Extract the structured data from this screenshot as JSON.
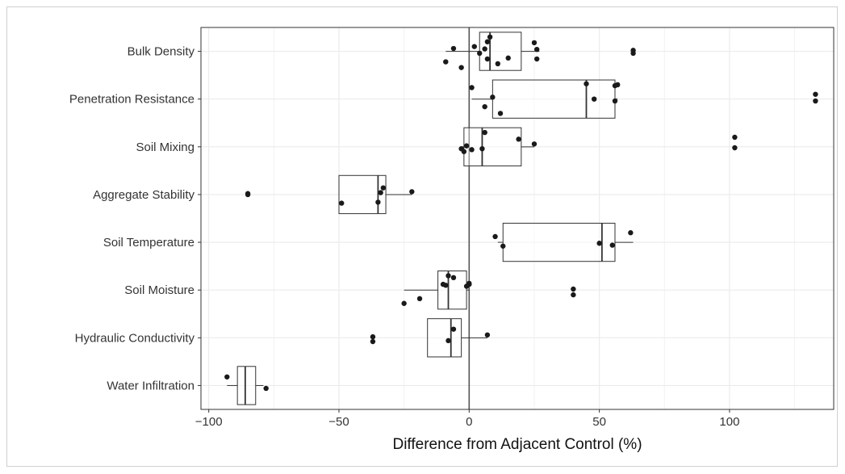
{
  "chart_data": {
    "type": "boxplot",
    "orientation": "horizontal",
    "title": "",
    "xlabel": "Difference from Adjacent Control (%)",
    "ylabel": "",
    "xlim": [
      -103,
      140
    ],
    "xticks": [
      -100,
      -50,
      0,
      50,
      100
    ],
    "xtick_labels": [
      "−100",
      "−50",
      "0",
      "50",
      "100"
    ],
    "reference_line_x": 0,
    "grid": true,
    "legend": "none",
    "colors": {
      "box_fill": "#ffffff",
      "box_stroke": "#333333",
      "point": "#1a1a1a",
      "grid": "#ebebeb",
      "reference_line": "#555555"
    },
    "categories": [
      "Bulk Density",
      "Penetration Resistance",
      "Soil Mixing",
      "Aggregate Stability",
      "Soil Temperature",
      "Soil Moisture",
      "Hydraulic Conductivity",
      "Water Infiltration"
    ],
    "boxes": [
      {
        "category": "Bulk Density",
        "whisker_low": -9,
        "q1": 4,
        "median": 8,
        "q3": 20,
        "whisker_high": 27
      },
      {
        "category": "Penetration Resistance",
        "whisker_low": 1,
        "q1": 9,
        "median": 45,
        "q3": 56,
        "whisker_high": 57
      },
      {
        "category": "Soil Mixing",
        "whisker_low": -3,
        "q1": -2,
        "median": 5,
        "q3": 20,
        "whisker_high": 25
      },
      {
        "category": "Aggregate Stability",
        "whisker_low": -50,
        "q1": -50,
        "median": -35,
        "q3": -32,
        "whisker_high": -22
      },
      {
        "category": "Soil Temperature",
        "whisker_low": 11,
        "q1": 13,
        "median": 51,
        "q3": 56,
        "whisker_high": 63
      },
      {
        "category": "Soil Moisture",
        "whisker_low": -25,
        "q1": -12,
        "median": -8,
        "q3": -1,
        "whisker_high": 0
      },
      {
        "category": "Hydraulic Conductivity",
        "whisker_low": -16,
        "q1": -16,
        "median": -7,
        "q3": -3,
        "whisker_high": 7
      },
      {
        "category": "Water Infiltration",
        "whisker_low": -93,
        "q1": -89,
        "median": -86,
        "q3": -82,
        "whisker_high": -79
      }
    ],
    "points": [
      {
        "category": "Bulk Density",
        "x": -9,
        "jitter": 0.22
      },
      {
        "category": "Bulk Density",
        "x": -6,
        "jitter": -0.06
      },
      {
        "category": "Bulk Density",
        "x": -3,
        "jitter": 0.34
      },
      {
        "category": "Bulk Density",
        "x": 2,
        "jitter": -0.1
      },
      {
        "category": "Bulk Density",
        "x": 4,
        "jitter": 0.04
      },
      {
        "category": "Bulk Density",
        "x": 6,
        "jitter": -0.05
      },
      {
        "category": "Bulk Density",
        "x": 7,
        "jitter": 0.16
      },
      {
        "category": "Bulk Density",
        "x": 7,
        "jitter": -0.2
      },
      {
        "category": "Bulk Density",
        "x": 8,
        "jitter": -0.3
      },
      {
        "category": "Bulk Density",
        "x": 11,
        "jitter": 0.26
      },
      {
        "category": "Bulk Density",
        "x": 15,
        "jitter": 0.14
      },
      {
        "category": "Bulk Density",
        "x": 26,
        "jitter": 0.16
      },
      {
        "category": "Bulk Density",
        "x": 26,
        "jitter": -0.04
      },
      {
        "category": "Bulk Density",
        "x": 25,
        "jitter": -0.18
      },
      {
        "category": "Bulk Density",
        "x": 63,
        "jitter": -0.02
      },
      {
        "category": "Bulk Density",
        "x": 63,
        "jitter": 0.04
      },
      {
        "category": "Penetration Resistance",
        "x": 1,
        "jitter": -0.24
      },
      {
        "category": "Penetration Resistance",
        "x": 6,
        "jitter": 0.16
      },
      {
        "category": "Penetration Resistance",
        "x": 9,
        "jitter": -0.04
      },
      {
        "category": "Penetration Resistance",
        "x": 12,
        "jitter": 0.3
      },
      {
        "category": "Penetration Resistance",
        "x": 45,
        "jitter": -0.32
      },
      {
        "category": "Penetration Resistance",
        "x": 48,
        "jitter": 0.0
      },
      {
        "category": "Penetration Resistance",
        "x": 56,
        "jitter": 0.04
      },
      {
        "category": "Penetration Resistance",
        "x": 56,
        "jitter": -0.28
      },
      {
        "category": "Penetration Resistance",
        "x": 57,
        "jitter": -0.3
      },
      {
        "category": "Penetration Resistance",
        "x": 133,
        "jitter": 0.04
      },
      {
        "category": "Penetration Resistance",
        "x": 133,
        "jitter": -0.1
      },
      {
        "category": "Soil Mixing",
        "x": -3,
        "jitter": 0.04
      },
      {
        "category": "Soil Mixing",
        "x": -2,
        "jitter": 0.1
      },
      {
        "category": "Soil Mixing",
        "x": -1,
        "jitter": -0.02
      },
      {
        "category": "Soil Mixing",
        "x": 1,
        "jitter": 0.06
      },
      {
        "category": "Soil Mixing",
        "x": 5,
        "jitter": 0.04
      },
      {
        "category": "Soil Mixing",
        "x": 6,
        "jitter": -0.3
      },
      {
        "category": "Soil Mixing",
        "x": 19,
        "jitter": -0.16
      },
      {
        "category": "Soil Mixing",
        "x": 25,
        "jitter": -0.06
      },
      {
        "category": "Soil Mixing",
        "x": 102,
        "jitter": 0.02
      },
      {
        "category": "Soil Mixing",
        "x": 102,
        "jitter": -0.2
      },
      {
        "category": "Aggregate Stability",
        "x": -85,
        "jitter": 0.0
      },
      {
        "category": "Aggregate Stability",
        "x": -85,
        "jitter": -0.02
      },
      {
        "category": "Aggregate Stability",
        "x": -49,
        "jitter": 0.18
      },
      {
        "category": "Aggregate Stability",
        "x": -35,
        "jitter": 0.16
      },
      {
        "category": "Aggregate Stability",
        "x": -34,
        "jitter": -0.04
      },
      {
        "category": "Aggregate Stability",
        "x": -33,
        "jitter": -0.14
      },
      {
        "category": "Aggregate Stability",
        "x": -22,
        "jitter": -0.06
      },
      {
        "category": "Soil Temperature",
        "x": 10,
        "jitter": -0.12
      },
      {
        "category": "Soil Temperature",
        "x": 13,
        "jitter": 0.08
      },
      {
        "category": "Soil Temperature",
        "x": 50,
        "jitter": 0.02
      },
      {
        "category": "Soil Temperature",
        "x": 55,
        "jitter": 0.06
      },
      {
        "category": "Soil Temperature",
        "x": 62,
        "jitter": -0.2
      },
      {
        "category": "Soil Moisture",
        "x": -25,
        "jitter": 0.28
      },
      {
        "category": "Soil Moisture",
        "x": -19,
        "jitter": 0.18
      },
      {
        "category": "Soil Moisture",
        "x": -10,
        "jitter": -0.12
      },
      {
        "category": "Soil Moisture",
        "x": -9,
        "jitter": -0.1
      },
      {
        "category": "Soil Moisture",
        "x": -8,
        "jitter": -0.3
      },
      {
        "category": "Soil Moisture",
        "x": -6,
        "jitter": -0.26
      },
      {
        "category": "Soil Moisture",
        "x": -1,
        "jitter": -0.08
      },
      {
        "category": "Soil Moisture",
        "x": 0,
        "jitter": -0.12
      },
      {
        "category": "Soil Moisture",
        "x": 0,
        "jitter": -0.14
      },
      {
        "category": "Soil Moisture",
        "x": 40,
        "jitter": 0.1
      },
      {
        "category": "Soil Moisture",
        "x": 40,
        "jitter": -0.02
      },
      {
        "category": "Hydraulic Conductivity",
        "x": -37,
        "jitter": 0.08
      },
      {
        "category": "Hydraulic Conductivity",
        "x": -37,
        "jitter": -0.02
      },
      {
        "category": "Hydraulic Conductivity",
        "x": -8,
        "jitter": 0.06
      },
      {
        "category": "Hydraulic Conductivity",
        "x": -6,
        "jitter": -0.18
      },
      {
        "category": "Hydraulic Conductivity",
        "x": 7,
        "jitter": -0.06
      },
      {
        "category": "Water Infiltration",
        "x": -93,
        "jitter": -0.18
      },
      {
        "category": "Water Infiltration",
        "x": -78,
        "jitter": 0.06
      }
    ]
  }
}
